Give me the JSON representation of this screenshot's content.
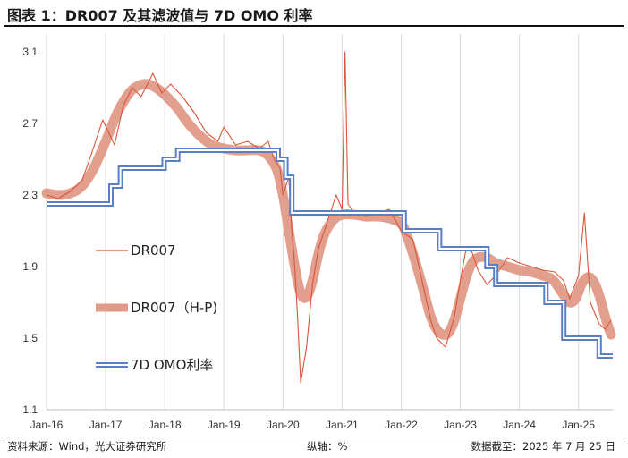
{
  "title": "图表 1：DR007 及其滤波值与 7D OMO 利率",
  "footer": {
    "source": "资料来源：Wind，光大证券研究所",
    "axis_note": "纵轴：%",
    "date": "数据截至：2025 年 7 月 25 日"
  },
  "chart_data": {
    "type": "line",
    "title": "DR007 及其滤波值与 7D OMO 利率",
    "xlabel": "",
    "ylabel": "%",
    "xlim": [
      2016.0,
      2025.58
    ],
    "ylim": [
      1.1,
      3.2
    ],
    "y_ticks": [
      3.1,
      2.7,
      2.3,
      1.9,
      1.5,
      1.1
    ],
    "y_tick_labels": [
      "3.1",
      "2.7",
      "2.3",
      "1.9",
      "1.5",
      "1.1"
    ],
    "x_ticks": [
      2016,
      2017,
      2018,
      2019,
      2020,
      2021,
      2022,
      2023,
      2024,
      2025
    ],
    "x_tick_labels": [
      "Jan-16",
      "Jan-17",
      "Jan-18",
      "Jan-19",
      "Jan-20",
      "Jan-21",
      "Jan-22",
      "Jan-23",
      "Jan-24",
      "Jan-25"
    ],
    "grid": "vertical",
    "series": [
      {
        "name": "DR007",
        "color": "#D9553A",
        "style": "thin-line",
        "x": [
          2016.0,
          2016.2,
          2016.4,
          2016.6,
          2016.75,
          2016.85,
          2016.95,
          2017.05,
          2017.15,
          2017.3,
          2017.45,
          2017.6,
          2017.8,
          2017.95,
          2018.1,
          2018.3,
          2018.5,
          2018.7,
          2018.9,
          2019.0,
          2019.2,
          2019.4,
          2019.6,
          2019.75,
          2019.85,
          2019.95,
          2020.0,
          2020.1,
          2020.15,
          2020.2,
          2020.25,
          2020.3,
          2020.4,
          2020.5,
          2020.6,
          2020.7,
          2020.8,
          2020.9,
          2021.0,
          2021.05,
          2021.1,
          2021.2,
          2021.4,
          2021.6,
          2021.8,
          2022.0,
          2022.2,
          2022.4,
          2022.5,
          2022.6,
          2022.75,
          2022.9,
          2023.0,
          2023.1,
          2023.2,
          2023.3,
          2023.45,
          2023.6,
          2023.8,
          2024.0,
          2024.2,
          2024.4,
          2024.6,
          2024.75,
          2024.85,
          2025.0,
          2025.1,
          2025.2,
          2025.35,
          2025.45,
          2025.55
        ],
        "values": [
          2.3,
          2.28,
          2.32,
          2.38,
          2.52,
          2.62,
          2.72,
          2.65,
          2.58,
          2.8,
          2.9,
          2.85,
          2.98,
          2.87,
          2.92,
          2.85,
          2.76,
          2.65,
          2.6,
          2.68,
          2.58,
          2.6,
          2.56,
          2.6,
          2.5,
          2.45,
          2.3,
          2.4,
          2.1,
          1.9,
          1.6,
          1.25,
          1.45,
          1.8,
          2.0,
          2.1,
          2.2,
          2.3,
          2.22,
          3.1,
          2.25,
          2.2,
          2.18,
          2.2,
          2.22,
          2.1,
          2.05,
          1.75,
          1.6,
          1.5,
          1.45,
          1.62,
          1.82,
          2.0,
          1.98,
          1.88,
          1.8,
          1.85,
          1.95,
          1.92,
          1.9,
          1.88,
          1.87,
          1.82,
          1.72,
          1.85,
          2.2,
          1.7,
          1.58,
          1.55,
          1.6
        ]
      },
      {
        "name": "DR007（H-P)",
        "color": "#E09A88",
        "style": "thick-band",
        "x": [
          2016.0,
          2016.2,
          2016.4,
          2016.6,
          2016.8,
          2017.0,
          2017.2,
          2017.4,
          2017.55,
          2017.7,
          2017.85,
          2018.0,
          2018.2,
          2018.4,
          2018.6,
          2018.8,
          2019.0,
          2019.2,
          2019.4,
          2019.6,
          2019.75,
          2019.9,
          2020.0,
          2020.1,
          2020.2,
          2020.3,
          2020.4,
          2020.5,
          2020.6,
          2020.7,
          2020.85,
          2021.0,
          2021.2,
          2021.4,
          2021.6,
          2021.8,
          2022.0,
          2022.1,
          2022.2,
          2022.3,
          2022.4,
          2022.5,
          2022.6,
          2022.7,
          2022.8,
          2022.9,
          2023.0,
          2023.1,
          2023.2,
          2023.3,
          2023.45,
          2023.6,
          2023.8,
          2024.0,
          2024.2,
          2024.4,
          2024.55,
          2024.65,
          2024.75,
          2024.85,
          2024.95,
          2025.05,
          2025.15,
          2025.25,
          2025.35,
          2025.45,
          2025.55
        ],
        "values": [
          2.31,
          2.3,
          2.31,
          2.35,
          2.45,
          2.6,
          2.76,
          2.87,
          2.91,
          2.92,
          2.9,
          2.86,
          2.79,
          2.7,
          2.63,
          2.58,
          2.56,
          2.55,
          2.55,
          2.55,
          2.52,
          2.44,
          2.3,
          2.1,
          1.9,
          1.75,
          1.73,
          1.82,
          1.97,
          2.08,
          2.16,
          2.19,
          2.19,
          2.18,
          2.18,
          2.17,
          2.14,
          2.07,
          1.97,
          1.86,
          1.74,
          1.62,
          1.55,
          1.52,
          1.53,
          1.6,
          1.72,
          1.84,
          1.92,
          1.95,
          1.95,
          1.92,
          1.9,
          1.88,
          1.87,
          1.85,
          1.83,
          1.79,
          1.74,
          1.7,
          1.72,
          1.8,
          1.84,
          1.82,
          1.74,
          1.62,
          1.52
        ]
      },
      {
        "name": "7D OMO利率",
        "color": "#5B7FC4",
        "style": "double-line",
        "step": true,
        "x": [
          2016.0,
          2016.95,
          2017.09,
          2017.25,
          2017.99,
          2018.22,
          2019.0,
          2019.92,
          2020.05,
          2020.15,
          2021.0,
          2022.05,
          2022.65,
          2023.0,
          2023.45,
          2023.6,
          2024.0,
          2024.45,
          2024.55,
          2024.75,
          2025.0,
          2025.35,
          2025.58
        ],
        "values": [
          2.25,
          2.25,
          2.35,
          2.45,
          2.5,
          2.55,
          2.55,
          2.5,
          2.4,
          2.2,
          2.2,
          2.1,
          2.0,
          2.0,
          1.9,
          1.8,
          1.8,
          1.7,
          1.7,
          1.5,
          1.5,
          1.4,
          1.4
        ]
      }
    ],
    "legend": "inside-left"
  }
}
